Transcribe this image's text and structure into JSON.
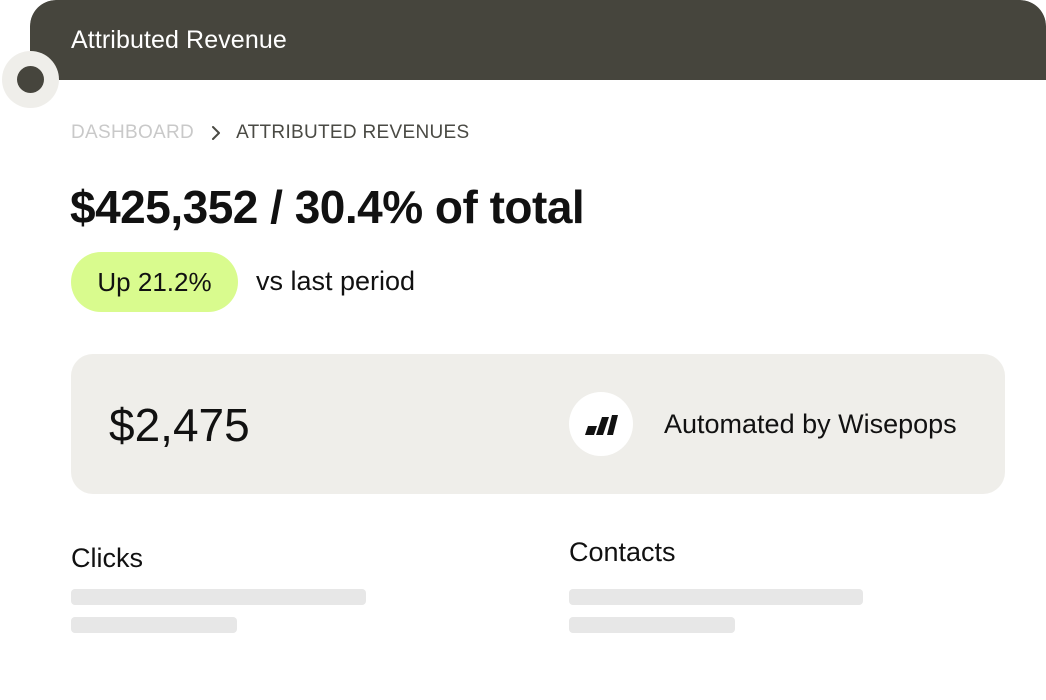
{
  "window": {
    "title": "Attributed Revenue"
  },
  "breadcrumb": {
    "home": "DASHBOARD",
    "current": "ATTRIBUTED REVENUES",
    "separator_icon": "chevron-right-icon"
  },
  "summary": {
    "headline": "$425,352 / 30.4% of total",
    "change_badge": "Up 21.2%",
    "change_note": "vs last period"
  },
  "automated_card": {
    "amount": "$2,475",
    "logo_icon": "wisepops-logo-icon",
    "label": "Automated by Wisepops"
  },
  "metrics": [
    {
      "label": "Clicks"
    },
    {
      "label": "Contacts"
    }
  ],
  "colors": {
    "titlebar": "#46453d",
    "badge": "#d9fb8e",
    "card": "#efeeea",
    "placeholder": "#e7e7e7",
    "breadcrumb_home": "#c9c9c9"
  }
}
